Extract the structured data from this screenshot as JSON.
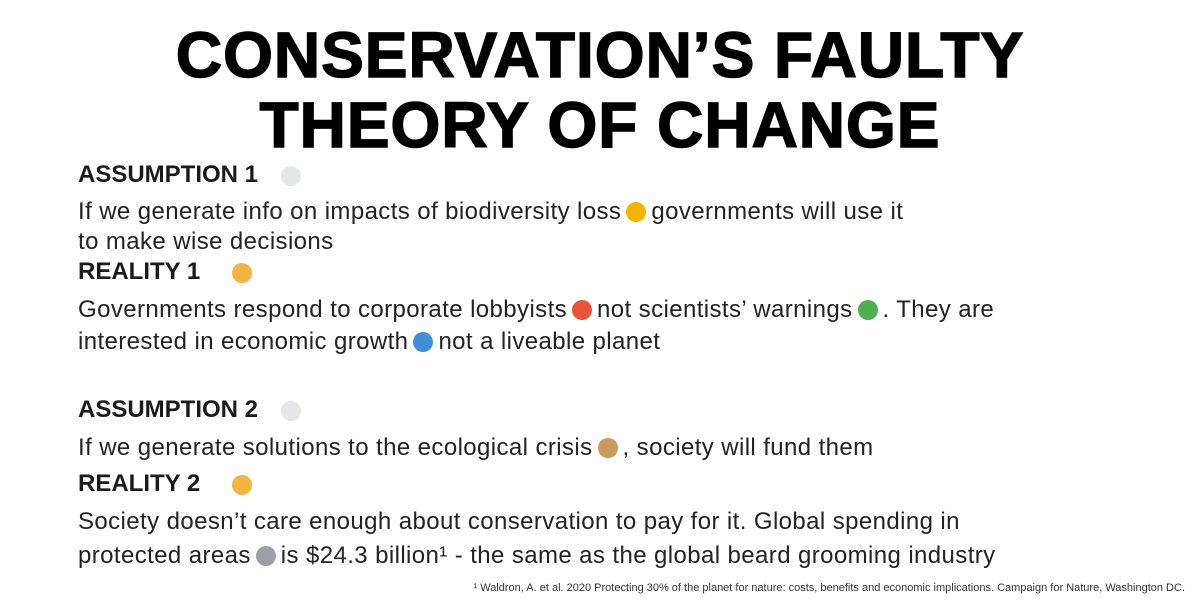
{
  "title": {
    "lines": [
      "CONSERVATION’S FAULTY",
      "THEORY OF CHANGE"
    ]
  },
  "sections": [
    {
      "heading": "ASSUMPTION 1",
      "lines": [
        [
          "If we generate info on impacts of biodiversity loss",
          "governments will use it"
        ],
        [
          "to make wise decisions"
        ]
      ]
    },
    {
      "heading": "REALITY 1",
      "lines": [
        [
          "Governments respond to corporate lobbyists",
          "not scientists’ warnings",
          ". They are"
        ],
        [
          "interested in economic growth",
          "not a liveable planet"
        ]
      ]
    },
    {
      "heading": "ASSUMPTION 2",
      "lines": [
        [
          "If we generate solutions to the ecological crisis",
          ", society will fund them"
        ]
      ]
    },
    {
      "heading": "REALITY 2",
      "lines": [
        [
          "Society doesn’t care enough about conservation to pay for it. Global spending in"
        ],
        [
          "protected areas",
          "is $24.3 billion¹ - the same as the global beard grooming industry"
        ]
      ]
    }
  ],
  "footnote": "¹ Waldron, A. et al. 2020 Protecting 30% of the planet for nature: costs, benefits and economic implications. Campaign for Nature, Washington DC."
}
